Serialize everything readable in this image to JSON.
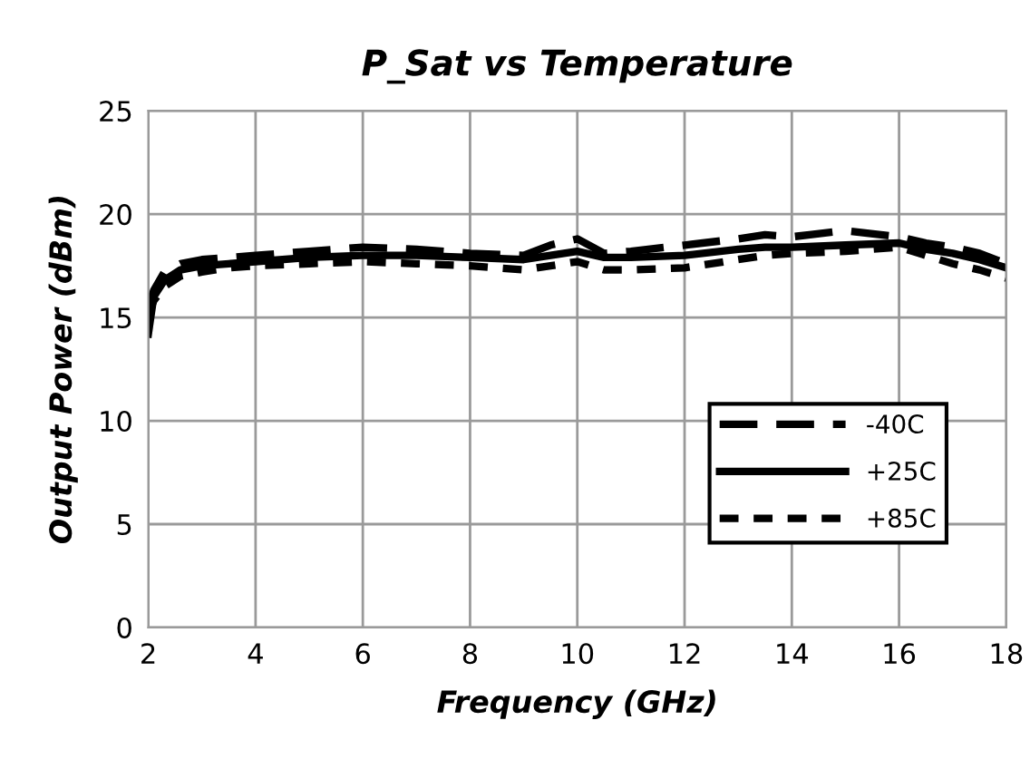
{
  "chart_data": {
    "type": "line",
    "title": "P_Sat vs Temperature",
    "xlabel": "Frequency (GHz)",
    "ylabel": "Output Power (dBm)",
    "x": [
      2,
      2.1,
      2.3,
      2.6,
      3,
      3.5,
      4,
      5,
      6,
      7,
      8,
      9,
      9.5,
      10,
      10.5,
      11,
      12,
      13,
      13.5,
      14,
      15,
      16,
      16.5,
      17,
      17.5,
      18
    ],
    "series": [
      {
        "name": "-40C",
        "color": "#000000",
        "line_style": "dashed",
        "values": [
          15.5,
          16.3,
          17.2,
          17.6,
          17.8,
          17.9,
          18.0,
          18.2,
          18.4,
          18.3,
          18.1,
          18.0,
          18.5,
          18.8,
          18.1,
          18.2,
          18.5,
          18.8,
          19.0,
          18.9,
          19.2,
          18.9,
          18.6,
          18.4,
          18.1,
          17.6
        ]
      },
      {
        "name": "+25C",
        "color": "#000000",
        "line_style": "solid",
        "values": [
          14.2,
          16.0,
          16.8,
          17.3,
          17.5,
          17.6,
          17.7,
          17.9,
          18.0,
          18.0,
          17.9,
          17.8,
          18.0,
          18.2,
          17.9,
          17.9,
          18.0,
          18.3,
          18.4,
          18.4,
          18.5,
          18.6,
          18.3,
          18.1,
          17.8,
          17.4
        ]
      },
      {
        "name": "+85C",
        "color": "#000000",
        "line_style": "dotted",
        "values": [
          15.2,
          15.8,
          16.5,
          17.0,
          17.2,
          17.4,
          17.5,
          17.6,
          17.7,
          17.6,
          17.5,
          17.3,
          17.5,
          17.7,
          17.3,
          17.3,
          17.4,
          17.8,
          18.0,
          18.1,
          18.2,
          18.4,
          18.0,
          17.6,
          17.3,
          16.9
        ]
      }
    ],
    "xlim": [
      2,
      18
    ],
    "xticks": [
      2,
      4,
      6,
      8,
      10,
      12,
      14,
      16,
      18
    ],
    "ylim": [
      0,
      25
    ],
    "yticks": [
      0,
      5,
      10,
      15,
      20,
      25
    ],
    "grid": true,
    "legend": "bottom right",
    "marker": "none"
  }
}
